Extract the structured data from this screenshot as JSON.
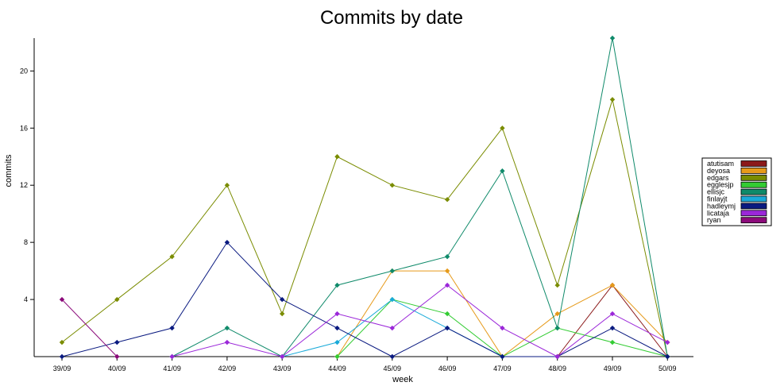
{
  "chart_data": {
    "type": "line",
    "title": "Commits by date",
    "xlabel": "week",
    "ylabel": "commits",
    "categories": [
      "39/09",
      "40/09",
      "41/09",
      "42/09",
      "43/09",
      "44/09",
      "45/09",
      "46/09",
      "47/09",
      "48/09",
      "49/09",
      "50/09"
    ],
    "yticks": [
      4,
      8,
      12,
      16,
      20
    ],
    "ylim": [
      0,
      22.3
    ],
    "grid": false,
    "legend_position": "right",
    "series": [
      {
        "name": "atutisam",
        "color": "#8b1a1a",
        "values": [
          null,
          null,
          null,
          null,
          null,
          null,
          null,
          null,
          null,
          0,
          5,
          0
        ]
      },
      {
        "name": "deyosa",
        "color": "#e69a1a",
        "values": [
          null,
          null,
          null,
          null,
          null,
          0,
          6,
          6,
          0,
          3,
          5,
          1
        ]
      },
      {
        "name": "edgars",
        "color": "#7a8c00",
        "values": [
          1,
          4,
          7,
          12,
          3,
          14,
          12,
          11,
          16,
          5,
          18,
          0
        ]
      },
      {
        "name": "egglesjp",
        "color": "#33cc33",
        "values": [
          null,
          null,
          null,
          null,
          null,
          0,
          4,
          3,
          0,
          2,
          1,
          0
        ]
      },
      {
        "name": "ellisjc",
        "color": "#0f8a6a",
        "values": [
          null,
          null,
          0,
          2,
          0,
          5,
          6,
          7,
          13,
          2,
          22.3,
          0
        ]
      },
      {
        "name": "finlayjt",
        "color": "#1aaad9",
        "values": [
          null,
          null,
          null,
          null,
          0,
          1,
          4,
          2,
          0,
          null,
          null,
          null
        ]
      },
      {
        "name": "hadleymj",
        "color": "#0a1a80",
        "values": [
          0,
          1,
          2,
          8,
          4,
          2,
          0,
          2,
          0,
          0,
          2,
          0
        ]
      },
      {
        "name": "licataja",
        "color": "#9b27d9",
        "values": [
          null,
          null,
          0,
          1,
          0,
          3,
          2,
          5,
          2,
          0,
          3,
          1
        ]
      },
      {
        "name": "ryan",
        "color": "#8b0a7a",
        "values": [
          4,
          0,
          null,
          null,
          null,
          null,
          null,
          null,
          null,
          null,
          null,
          null
        ]
      }
    ]
  }
}
